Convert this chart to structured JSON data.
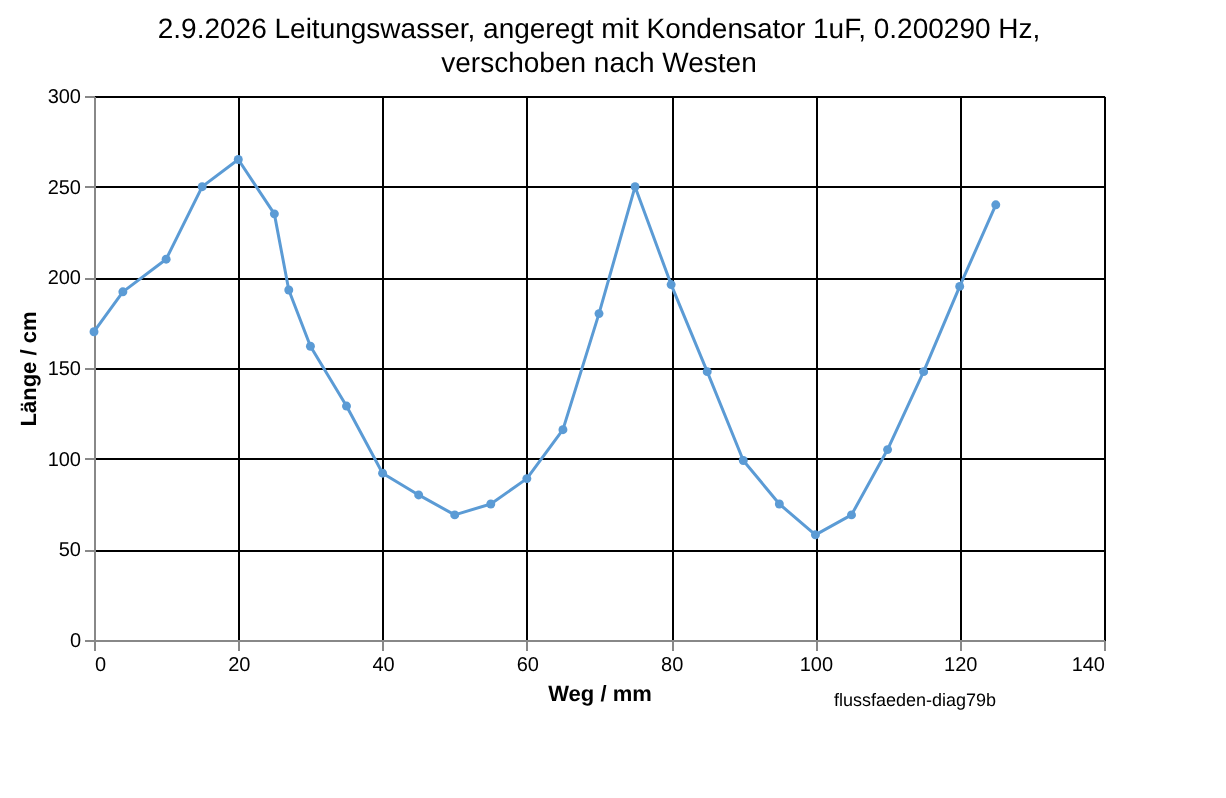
{
  "chart_data": {
    "type": "line",
    "title": "2.9.2026 Leitungswasser, angeregt mit Kondensator 1uF, 0.200290 Hz,",
    "subtitle": "verschoben nach Westen",
    "xlabel": "Weg / mm",
    "ylabel": "Länge / cm",
    "x": [
      0,
      4,
      10,
      15,
      20,
      25,
      27,
      30,
      35,
      40,
      45,
      50,
      55,
      60,
      65,
      70,
      75,
      80,
      85,
      90,
      95,
      100,
      105,
      110,
      115,
      120,
      125
    ],
    "series": [
      {
        "color": "#5b9bd5",
        "values": [
          170,
          192,
          210,
          250,
          265,
          235,
          193,
          162,
          129,
          92,
          80,
          69,
          75,
          89,
          116,
          180,
          250,
          196,
          148,
          99,
          75,
          58,
          69,
          105,
          148,
          195,
          240
        ]
      }
    ],
    "xlim": [
      0,
      140
    ],
    "xticks": [
      0,
      20,
      40,
      60,
      80,
      100,
      120,
      140
    ],
    "ylim": [
      0,
      300
    ],
    "yticks": [
      0,
      50,
      100,
      150,
      200,
      250,
      300
    ],
    "grid": true,
    "marker": "circle",
    "line_style": "solid",
    "annotations": [
      "flussfaeden-diag79b"
    ]
  }
}
